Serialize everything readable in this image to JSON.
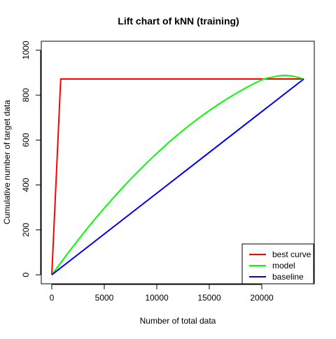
{
  "chart_data": {
    "type": "line",
    "title": "Lift chart of kNN (training)",
    "xlabel": "Number of total data",
    "ylabel": "Cumulative number of target data",
    "xlim": [
      -1000,
      25000
    ],
    "ylim": [
      -40,
      1040
    ],
    "x_ticks": [
      0,
      5000,
      10000,
      15000,
      20000
    ],
    "y_ticks": [
      0,
      200,
      400,
      600,
      800,
      1000
    ],
    "grid": false,
    "legend_position": "bottom-right",
    "series": [
      {
        "name": "best curve",
        "color": "#ff0000",
        "points": [
          [
            0,
            0
          ],
          [
            850,
            872
          ],
          [
            24000,
            872
          ]
        ]
      },
      {
        "name": "model",
        "color": "#00ff00",
        "points": [
          [
            0,
            0
          ],
          [
            2000,
            125
          ],
          [
            4000,
            242
          ],
          [
            6000,
            350
          ],
          [
            8000,
            450
          ],
          [
            10000,
            541
          ],
          [
            12000,
            624
          ],
          [
            14000,
            698
          ],
          [
            16000,
            763
          ],
          [
            18000,
            820
          ],
          [
            20000,
            868
          ],
          [
            21000,
            880
          ],
          [
            22000,
            888
          ],
          [
            23000,
            884
          ],
          [
            24000,
            872
          ]
        ]
      },
      {
        "name": "baseline",
        "color": "#0000ff",
        "points": [
          [
            0,
            0
          ],
          [
            24000,
            872
          ]
        ]
      }
    ]
  }
}
